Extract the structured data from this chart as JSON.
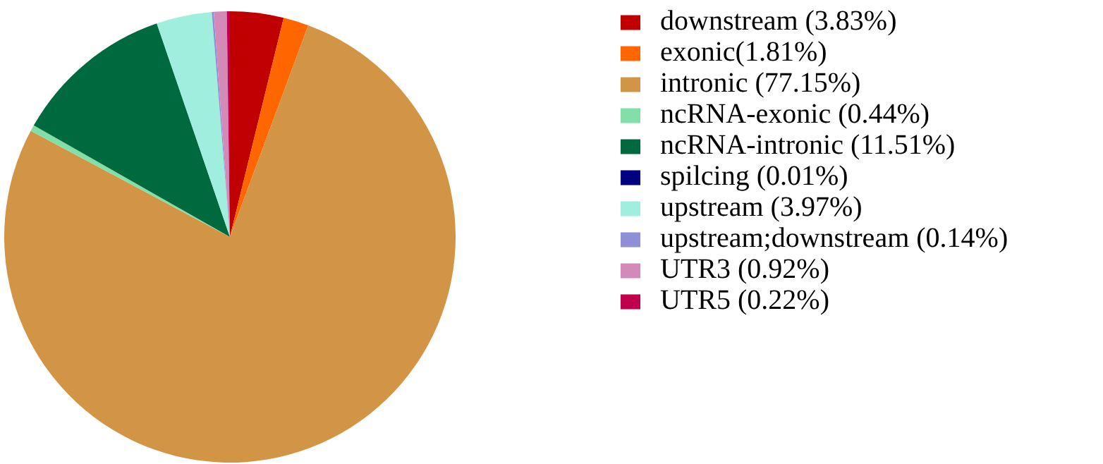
{
  "chart_data": {
    "type": "pie",
    "categories": [
      "downstream (3.83%)",
      "exonic(1.81%)",
      "intronic (77.15%)",
      "ncRNA-exonic (0.44%)",
      "ncRNA-intronic (11.51%)",
      "spilcing (0.01%)",
      "upstream (3.97%)",
      "upstream;downstream (0.14%)",
      "UTR3 (0.92%)",
      "UTR5 (0.22%)"
    ],
    "values": [
      3.83,
      1.81,
      77.15,
      0.44,
      11.51,
      0.01,
      3.97,
      0.14,
      0.92,
      0.22
    ],
    "colors": [
      "#c00000",
      "#ff6600",
      "#d29545",
      "#80e0a8",
      "#006a3f",
      "#000080",
      "#a0eedd",
      "#8f8fd8",
      "#d48ab8",
      "#c0004a"
    ],
    "legend": "right"
  }
}
